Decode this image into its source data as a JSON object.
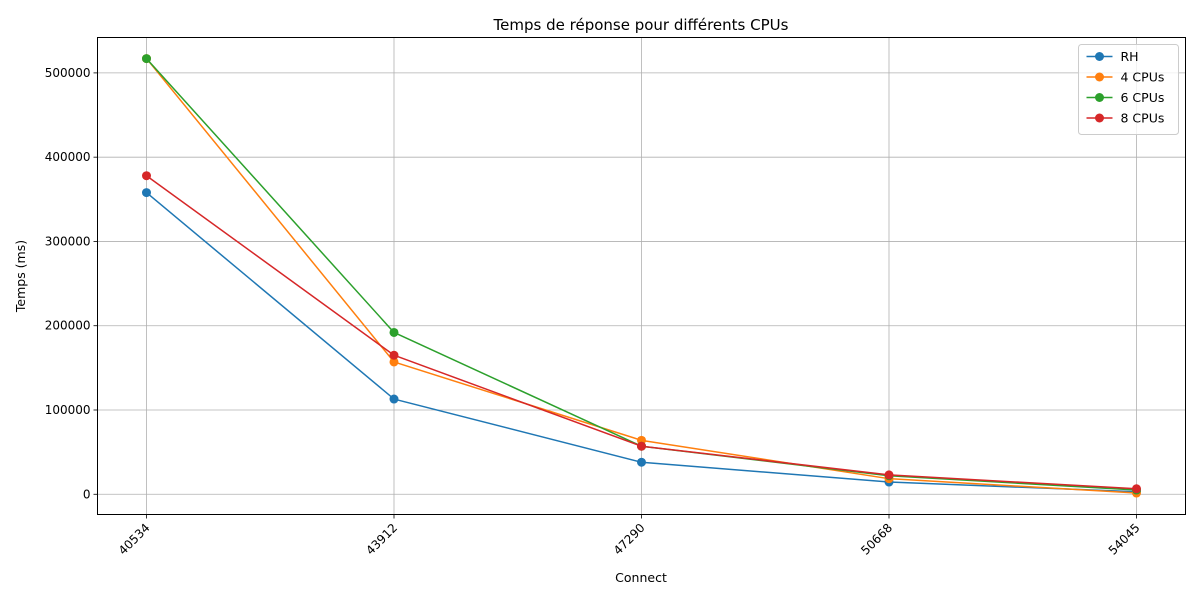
{
  "chart_data": {
    "type": "line",
    "title": "Temps de réponse pour différents CPUs",
    "xlabel": "Connect",
    "ylabel": "Temps (ms)",
    "categories": [
      "40534",
      "43912",
      "47290",
      "50668",
      "54045"
    ],
    "ylim": [
      -24000,
      542000
    ],
    "yticks": [
      0,
      100000,
      200000,
      300000,
      400000,
      500000
    ],
    "grid": true,
    "legend_position": "top-right",
    "series": [
      {
        "name": "RH",
        "color": "#1f77b4",
        "values": [
          358000,
          113000,
          38000,
          14500,
          3000
        ]
      },
      {
        "name": "4 CPUs",
        "color": "#ff7f0e",
        "values": [
          517000,
          157000,
          64000,
          18500,
          1500
        ]
      },
      {
        "name": "6 CPUs",
        "color": "#2ca02c",
        "values": [
          517000,
          192000,
          57000,
          22000,
          5000
        ]
      },
      {
        "name": "8 CPUs",
        "color": "#d62728",
        "values": [
          378000,
          165000,
          57000,
          23000,
          6500
        ]
      }
    ]
  }
}
